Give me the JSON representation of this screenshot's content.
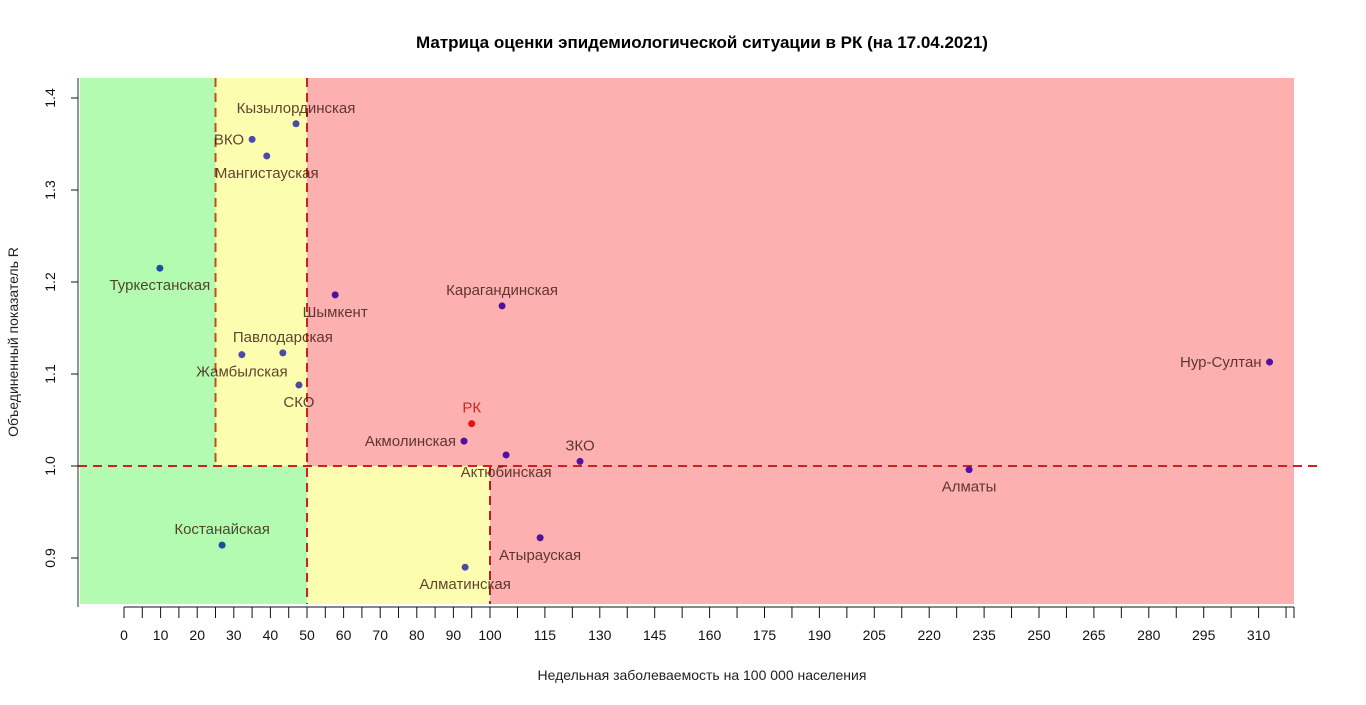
{
  "chart_data": {
    "type": "scatter",
    "title": "Матрица оценки эпидемиологической ситуации в РК (на 17.04.2021)",
    "xlabel": "Недельная заболеваемость на 100 000 населения",
    "ylabel": "Объединенный показатель R",
    "xlim": [
      -12,
      320
    ],
    "ylim": [
      0.85,
      1.425
    ],
    "grid": false,
    "x_ticks": [
      0,
      10,
      20,
      30,
      40,
      50,
      60,
      70,
      80,
      90,
      100,
      115,
      130,
      145,
      160,
      175,
      190,
      205,
      220,
      235,
      250,
      265,
      280,
      295,
      310
    ],
    "y_ticks": [
      0.9,
      1.0,
      1.1,
      1.2,
      1.3,
      1.4
    ],
    "y_tick_labels": [
      "0.9",
      "1.0",
      "1.1",
      "1.2",
      "1.3",
      "1.4"
    ],
    "zones": [
      {
        "name": "green-upper",
        "x": [
          -12,
          25
        ],
        "y": [
          1.0,
          1.425
        ],
        "color": "#b3fbb0"
      },
      {
        "name": "yellow-upper",
        "x": [
          25,
          50
        ],
        "y": [
          1.0,
          1.425
        ],
        "color": "#fdfdb0"
      },
      {
        "name": "red-upper",
        "x": [
          50,
          320
        ],
        "y": [
          1.0,
          1.425
        ],
        "color": "#fdb0b0"
      },
      {
        "name": "green-lower",
        "x": [
          -12,
          50
        ],
        "y": [
          0.85,
          1.0
        ],
        "color": "#b3fbb0"
      },
      {
        "name": "yellow-lower",
        "x": [
          50,
          100
        ],
        "y": [
          0.85,
          1.0
        ],
        "color": "#fdfdb0"
      },
      {
        "name": "red-lower",
        "x": [
          100,
          320
        ],
        "y": [
          0.85,
          1.0
        ],
        "color": "#fdb0b0"
      }
    ],
    "threshold_lines": [
      {
        "orientation": "vertical",
        "x": 25,
        "y": [
          1.0,
          1.425
        ],
        "color": "#c0501a"
      },
      {
        "orientation": "vertical",
        "x": 50,
        "y": [
          0.85,
          1.425
        ],
        "color": "#d02020"
      },
      {
        "orientation": "vertical",
        "x": 100,
        "y": [
          0.85,
          1.0
        ],
        "color": "#b02020"
      },
      {
        "orientation": "horizontal",
        "y": 1.0,
        "color": "#d02020"
      }
    ],
    "points": [
      {
        "label": "Туркестанская",
        "x": 9.8,
        "y": 1.215,
        "color": "#1a4fa0",
        "label_pos": "below"
      },
      {
        "label": "Кызылординская",
        "x": 47.0,
        "y": 1.372,
        "color": "#4a4aa8",
        "label_pos": "above"
      },
      {
        "label": "ВКО",
        "x": 35.0,
        "y": 1.355,
        "color": "#4a4aa8",
        "label_pos": "left"
      },
      {
        "label": "Мангистауская",
        "x": 39.0,
        "y": 1.337,
        "color": "#4a4aa8",
        "label_pos": "below"
      },
      {
        "label": "Шымкент",
        "x": 57.7,
        "y": 1.186,
        "color": "#5010a0",
        "label_pos": "below"
      },
      {
        "label": "Карагандинская",
        "x": 103.3,
        "y": 1.174,
        "color": "#5010a0",
        "label_pos": "above"
      },
      {
        "label": "Павлодарская",
        "x": 43.4,
        "y": 1.123,
        "color": "#4a4aa8",
        "label_pos": "above"
      },
      {
        "label": "Жамбылская",
        "x": 32.2,
        "y": 1.121,
        "color": "#4a4aa8",
        "label_pos": "below"
      },
      {
        "label": "СКО",
        "x": 47.8,
        "y": 1.088,
        "color": "#4a4aa8",
        "label_pos": "below"
      },
      {
        "label": "Нур-Султан",
        "x": 313.0,
        "y": 1.113,
        "color": "#5010a0",
        "label_pos": "left"
      },
      {
        "label": "РК",
        "x": 95.0,
        "y": 1.046,
        "color": "#e81010",
        "label_pos": "above",
        "highlight": true
      },
      {
        "label": "Акмолинская",
        "x": 92.9,
        "y": 1.027,
        "color": "#5010a0",
        "label_pos": "left"
      },
      {
        "label": "Актюбинская",
        "x": 104.4,
        "y": 1.012,
        "color": "#5010a0",
        "label_pos": "below"
      },
      {
        "label": "ЗКО",
        "x": 124.6,
        "y": 1.005,
        "color": "#5010a0",
        "label_pos": "above"
      },
      {
        "label": "Алматы",
        "x": 230.9,
        "y": 0.996,
        "color": "#5010a0",
        "label_pos": "below"
      },
      {
        "label": "Костанайская",
        "x": 26.8,
        "y": 0.914,
        "color": "#1a4fa0",
        "label_pos": "above"
      },
      {
        "label": "Атырауская",
        "x": 113.7,
        "y": 0.922,
        "color": "#5010a0",
        "label_pos": "below"
      },
      {
        "label": "Алматинская",
        "x": 93.2,
        "y": 0.89,
        "color": "#4a4aa8",
        "label_pos": "below"
      }
    ]
  }
}
